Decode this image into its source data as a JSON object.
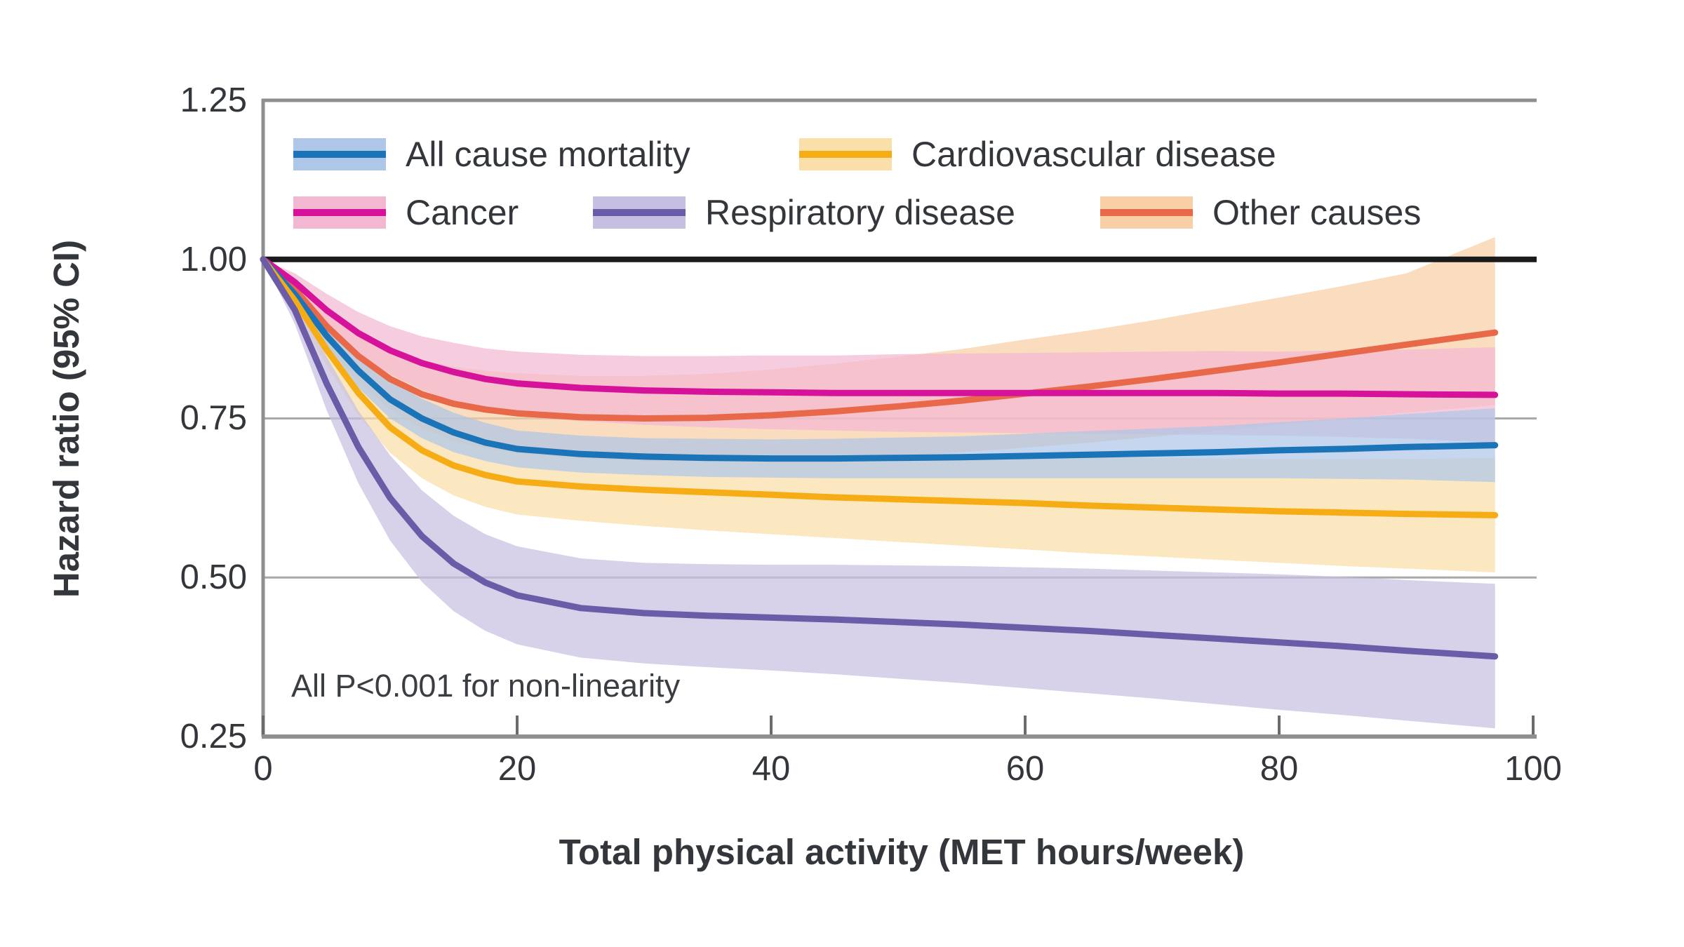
{
  "chart_data": {
    "type": "line",
    "title": "",
    "xlabel": "Total physical activity (MET hours/week)",
    "ylabel": "Hazard ratio (95% CI)",
    "annotation": "All P<0.001 for non-linearity",
    "xlim": [
      0,
      100
    ],
    "ylim": [
      0.25,
      1.25
    ],
    "x_ticks": [
      0,
      20,
      40,
      60,
      80,
      100
    ],
    "x_tick_labels": [
      "0",
      "20",
      "40",
      "60",
      "80",
      "100"
    ],
    "y_ticks": [
      1.25,
      1.0,
      0.75,
      0.5,
      0.25
    ],
    "y_tick_labels": [
      "1.25",
      "1.00",
      "0.75",
      "0.50",
      "0.25"
    ],
    "reference_line_y": 1.0,
    "gridlines_y": [
      0.75,
      0.5
    ],
    "grid": "horizontal-only",
    "legend_position": "top-inside-two-rows",
    "x": [
      0,
      2.5,
      5,
      7.5,
      10,
      12.5,
      15,
      17.5,
      20,
      25,
      30,
      35,
      40,
      45,
      50,
      55,
      60,
      65,
      70,
      75,
      80,
      85,
      90,
      97
    ],
    "series": [
      {
        "name": "All cause mortality",
        "line_color": "#1b74b8",
        "band_color": "#aec6e8",
        "y": [
          1.0,
          0.945,
          0.88,
          0.825,
          0.78,
          0.75,
          0.728,
          0.712,
          0.702,
          0.694,
          0.69,
          0.688,
          0.687,
          0.687,
          0.688,
          0.689,
          0.691,
          0.693,
          0.695,
          0.697,
          0.7,
          0.702,
          0.705,
          0.708
        ],
        "ci_lower": [
          1.0,
          0.933,
          0.86,
          0.798,
          0.75,
          0.719,
          0.697,
          0.683,
          0.673,
          0.665,
          0.661,
          0.658,
          0.657,
          0.656,
          0.656,
          0.656,
          0.656,
          0.656,
          0.656,
          0.656,
          0.656,
          0.655,
          0.654,
          0.65
        ],
        "ci_upper": [
          1.0,
          0.957,
          0.9,
          0.852,
          0.81,
          0.781,
          0.759,
          0.743,
          0.731,
          0.723,
          0.719,
          0.718,
          0.717,
          0.718,
          0.72,
          0.722,
          0.726,
          0.73,
          0.734,
          0.738,
          0.744,
          0.75,
          0.757,
          0.766
        ]
      },
      {
        "name": "Cardiovascular disease",
        "line_color": "#f6ad15",
        "band_color": "#fbdfa8",
        "y": [
          1.0,
          0.935,
          0.858,
          0.79,
          0.736,
          0.7,
          0.676,
          0.661,
          0.651,
          0.643,
          0.638,
          0.634,
          0.63,
          0.626,
          0.623,
          0.62,
          0.617,
          0.613,
          0.61,
          0.607,
          0.604,
          0.602,
          0.6,
          0.598
        ],
        "ci_lower": [
          1.0,
          0.92,
          0.833,
          0.755,
          0.696,
          0.656,
          0.629,
          0.611,
          0.599,
          0.589,
          0.581,
          0.574,
          0.568,
          0.562,
          0.556,
          0.55,
          0.544,
          0.538,
          0.533,
          0.528,
          0.523,
          0.518,
          0.514,
          0.508
        ],
        "ci_upper": [
          1.0,
          0.95,
          0.884,
          0.824,
          0.775,
          0.744,
          0.723,
          0.71,
          0.703,
          0.698,
          0.695,
          0.694,
          0.693,
          0.692,
          0.691,
          0.69,
          0.69,
          0.689,
          0.688,
          0.687,
          0.686,
          0.686,
          0.686,
          0.688
        ]
      },
      {
        "name": "Cancer",
        "line_color": "#d6129b",
        "band_color": "#f2b8d2",
        "y": [
          1.0,
          0.964,
          0.92,
          0.884,
          0.857,
          0.837,
          0.823,
          0.812,
          0.805,
          0.798,
          0.794,
          0.792,
          0.791,
          0.79,
          0.79,
          0.79,
          0.79,
          0.79,
          0.79,
          0.79,
          0.789,
          0.789,
          0.788,
          0.787
        ],
        "ci_lower": [
          1.0,
          0.95,
          0.894,
          0.851,
          0.819,
          0.795,
          0.777,
          0.764,
          0.755,
          0.746,
          0.74,
          0.736,
          0.733,
          0.731,
          0.729,
          0.728,
          0.727,
          0.726,
          0.725,
          0.724,
          0.723,
          0.721,
          0.718,
          0.712
        ],
        "ci_upper": [
          1.0,
          0.978,
          0.946,
          0.917,
          0.895,
          0.879,
          0.869,
          0.86,
          0.855,
          0.85,
          0.848,
          0.848,
          0.849,
          0.849,
          0.851,
          0.852,
          0.853,
          0.854,
          0.855,
          0.856,
          0.855,
          0.857,
          0.858,
          0.862
        ]
      },
      {
        "name": "Respiratory disease",
        "line_color": "#6c5ba7",
        "band_color": "#c7bfe1",
        "y": [
          1.0,
          0.92,
          0.805,
          0.705,
          0.625,
          0.565,
          0.522,
          0.492,
          0.472,
          0.452,
          0.444,
          0.44,
          0.437,
          0.434,
          0.43,
          0.426,
          0.421,
          0.416,
          0.41,
          0.404,
          0.398,
          0.392,
          0.385,
          0.376
        ],
        "ci_lower": [
          1.0,
          0.898,
          0.763,
          0.648,
          0.558,
          0.493,
          0.447,
          0.416,
          0.395,
          0.374,
          0.365,
          0.359,
          0.354,
          0.348,
          0.341,
          0.334,
          0.326,
          0.318,
          0.31,
          0.301,
          0.292,
          0.284,
          0.275,
          0.263
        ],
        "ci_upper": [
          1.0,
          0.942,
          0.847,
          0.762,
          0.692,
          0.637,
          0.597,
          0.568,
          0.549,
          0.53,
          0.523,
          0.521,
          0.52,
          0.52,
          0.519,
          0.518,
          0.516,
          0.514,
          0.511,
          0.508,
          0.505,
          0.501,
          0.496,
          0.49
        ]
      },
      {
        "name": "Other causes",
        "line_color": "#e8684a",
        "band_color": "#f8cfa6",
        "y": [
          1.0,
          0.953,
          0.895,
          0.848,
          0.812,
          0.788,
          0.773,
          0.764,
          0.758,
          0.752,
          0.75,
          0.751,
          0.755,
          0.761,
          0.769,
          0.778,
          0.789,
          0.8,
          0.812,
          0.825,
          0.838,
          0.852,
          0.866,
          0.885
        ],
        "ci_lower": [
          1.0,
          0.938,
          0.864,
          0.807,
          0.764,
          0.734,
          0.715,
          0.703,
          0.695,
          0.687,
          0.683,
          0.682,
          0.683,
          0.686,
          0.691,
          0.697,
          0.704,
          0.712,
          0.721,
          0.73,
          0.74,
          0.749,
          0.759,
          0.771
        ],
        "ci_upper": [
          1.0,
          0.968,
          0.926,
          0.889,
          0.86,
          0.842,
          0.831,
          0.825,
          0.821,
          0.817,
          0.817,
          0.82,
          0.827,
          0.836,
          0.847,
          0.859,
          0.874,
          0.888,
          0.904,
          0.922,
          0.94,
          0.958,
          0.978,
          1.035
        ]
      }
    ],
    "colors": {
      "reference_line": "#1a1a1a",
      "frame": "#8f8f8f",
      "gridline": "#a9a9a9",
      "tick": "#6b6b6b",
      "text": "#33363b"
    }
  },
  "legend": {
    "items": [
      {
        "label": "All cause mortality"
      },
      {
        "label": "Cardiovascular disease"
      },
      {
        "label": "Cancer"
      },
      {
        "label": "Respiratory disease"
      },
      {
        "label": "Other causes"
      }
    ]
  }
}
